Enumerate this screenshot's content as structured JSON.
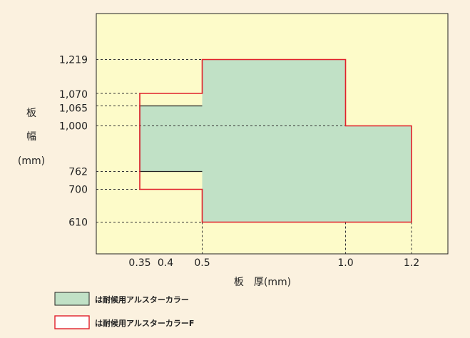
{
  "chart_data": {
    "type": "area",
    "xlabel": "板　厚(mm)",
    "ylabel_lines": [
      "板",
      "幅",
      "(mm)"
    ],
    "x_ticks": [
      {
        "value": 0.35,
        "label": "0.35"
      },
      {
        "value": 0.4,
        "label": "0.4"
      },
      {
        "value": 0.5,
        "label": "0.5"
      },
      {
        "value": 1.0,
        "label": "1.0"
      },
      {
        "value": 1.2,
        "label": "1.2"
      }
    ],
    "y_ticks": [
      {
        "value": 1219,
        "label": "1,219"
      },
      {
        "value": 1070,
        "label": "1,070"
      },
      {
        "value": 1065,
        "label": "1,065"
      },
      {
        "value": 1000,
        "label": "1,000"
      },
      {
        "value": 762,
        "label": "762"
      },
      {
        "value": 700,
        "label": "700"
      },
      {
        "value": 610,
        "label": "610"
      }
    ],
    "series": [
      {
        "name": "は耐候用アルスターカラー",
        "style": "fill",
        "color": "#c1e1c6",
        "regions": [
          {
            "x": [
              0.35,
              0.5
            ],
            "y": [
              762,
              1065
            ]
          },
          {
            "x": [
              0.5,
              1.0
            ],
            "y": [
              610,
              1219
            ]
          },
          {
            "x": [
              1.0,
              1.2
            ],
            "y": [
              610,
              1000
            ]
          }
        ]
      },
      {
        "name": "は耐候用アルスターカラーF",
        "style": "outline",
        "color": "#e0202a",
        "polygon": [
          [
            0.5,
            1219
          ],
          [
            1.0,
            1219
          ],
          [
            1.0,
            1000
          ],
          [
            1.2,
            1000
          ],
          [
            1.2,
            610
          ],
          [
            0.5,
            610
          ],
          [
            0.5,
            700
          ],
          [
            0.35,
            700
          ],
          [
            0.35,
            1070
          ],
          [
            0.5,
            1070
          ]
        ]
      }
    ],
    "plot_background": "#fdfbc9",
    "page_background": "#fbf1df",
    "legend_position": "bottom-left",
    "grid": false
  }
}
